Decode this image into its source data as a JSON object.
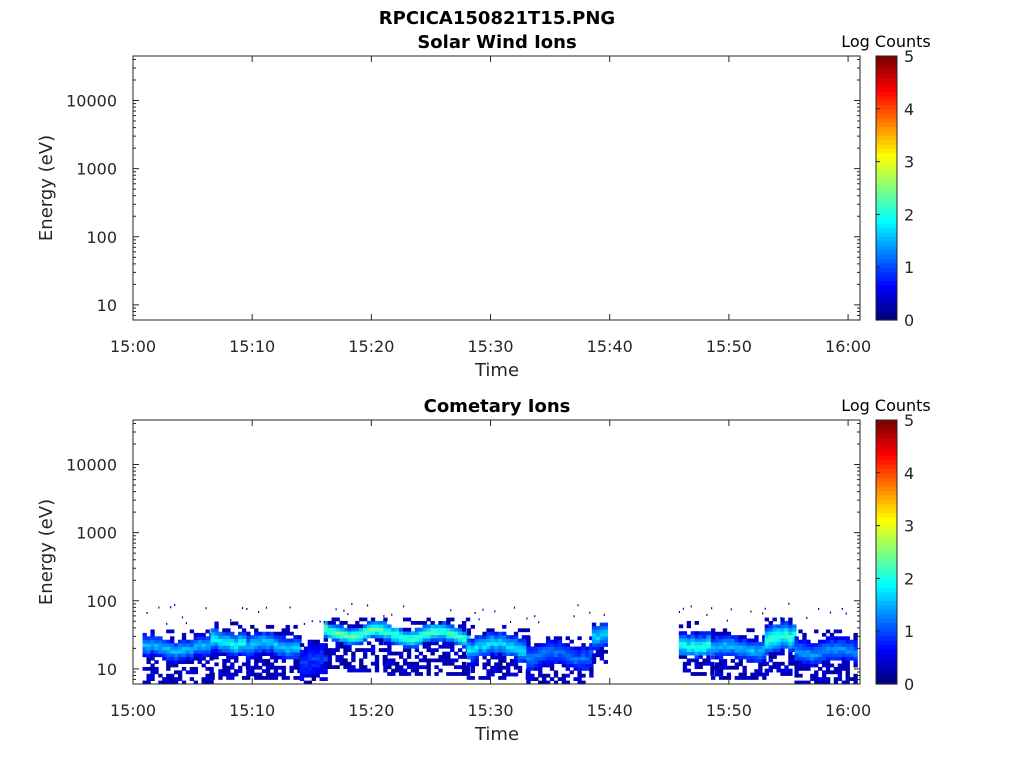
{
  "figure": {
    "title": "RPCICA150821T15.PNG"
  },
  "chart_data": [
    {
      "type": "heatmap",
      "title": "Solar Wind Ions",
      "xlabel": "Time",
      "ylabel": "Energy (eV)",
      "x_ticks": [
        "15:00",
        "15:10",
        "15:20",
        "15:30",
        "15:40",
        "15:50",
        "16:00"
      ],
      "x_range": [
        "15:00",
        "16:01"
      ],
      "y_scale": "log",
      "y_ticks": [
        "10",
        "100",
        "1000",
        "10000"
      ],
      "y_range": [
        6,
        45000
      ],
      "colorbar": {
        "label": "Log Counts",
        "ticks": [
          "0",
          "1",
          "2",
          "3",
          "4",
          "5"
        ],
        "range": [
          0,
          5
        ],
        "colormap": "jet"
      },
      "bands": []
    },
    {
      "type": "heatmap",
      "title": "Cometary Ions",
      "xlabel": "Time",
      "ylabel": "Energy (eV)",
      "x_ticks": [
        "15:00",
        "15:10",
        "15:20",
        "15:30",
        "15:40",
        "15:50",
        "16:00"
      ],
      "x_range": [
        "15:00",
        "16:01"
      ],
      "y_scale": "log",
      "y_ticks": [
        "10",
        "100",
        "1000",
        "10000"
      ],
      "y_range": [
        6,
        45000
      ],
      "colorbar": {
        "label": "Log Counts",
        "ticks": [
          "0",
          "1",
          "2",
          "3",
          "4",
          "5"
        ],
        "range": [
          0,
          5
        ],
        "colormap": "jet"
      },
      "data_gap": [
        "15:39:30",
        "15:45:45"
      ],
      "bands": [
        {
          "start_min": 0.8,
          "end_min": 6.5,
          "e_low": 13,
          "e_high": 27,
          "e_peak": 19,
          "peak_log": 1.6,
          "floor_log": 0.6,
          "min_e": 6
        },
        {
          "start_min": 6.5,
          "end_min": 9.5,
          "e_low": 16,
          "e_high": 35,
          "e_peak": 24,
          "peak_log": 2.0,
          "floor_log": 0.7,
          "min_e": 7
        },
        {
          "start_min": 9.5,
          "end_min": 14.0,
          "e_low": 14,
          "e_high": 30,
          "e_peak": 21,
          "peak_log": 1.7,
          "floor_log": 0.6,
          "min_e": 7
        },
        {
          "start_min": 14.0,
          "end_min": 16.0,
          "e_low": 7,
          "e_high": 20,
          "e_peak": 12,
          "peak_log": 0.9,
          "floor_log": 0.5,
          "min_e": 6
        },
        {
          "start_min": 16.0,
          "end_min": 21.0,
          "e_low": 24,
          "e_high": 42,
          "e_peak": 32,
          "peak_log": 2.5,
          "floor_log": 0.9,
          "min_e": 9
        },
        {
          "start_min": 21.0,
          "end_min": 28.0,
          "e_low": 22,
          "e_high": 40,
          "e_peak": 30,
          "peak_log": 2.3,
          "floor_log": 0.9,
          "min_e": 8
        },
        {
          "start_min": 28.0,
          "end_min": 33.0,
          "e_low": 14,
          "e_high": 30,
          "e_peak": 20,
          "peak_log": 1.8,
          "floor_log": 0.7,
          "min_e": 7
        },
        {
          "start_min": 33.0,
          "end_min": 38.5,
          "e_low": 10,
          "e_high": 22,
          "e_peak": 15,
          "peak_log": 1.2,
          "floor_log": 0.6,
          "min_e": 6
        },
        {
          "start_min": 38.5,
          "end_min": 39.5,
          "e_low": 18,
          "e_high": 40,
          "e_peak": 28,
          "peak_log": 1.7,
          "floor_log": 0.7,
          "min_e": 12
        },
        {
          "start_min": 45.8,
          "end_min": 48.5,
          "e_low": 16,
          "e_high": 35,
          "e_peak": 22,
          "peak_log": 2.1,
          "floor_log": 0.8,
          "min_e": 8
        },
        {
          "start_min": 48.5,
          "end_min": 53.0,
          "e_low": 13,
          "e_high": 28,
          "e_peak": 19,
          "peak_log": 1.6,
          "floor_log": 0.6,
          "min_e": 7
        },
        {
          "start_min": 53.0,
          "end_min": 55.5,
          "e_low": 16,
          "e_high": 40,
          "e_peak": 26,
          "peak_log": 2.2,
          "floor_log": 0.8,
          "min_e": 8
        },
        {
          "start_min": 55.5,
          "end_min": 60.5,
          "e_low": 12,
          "e_high": 26,
          "e_peak": 17,
          "peak_log": 1.4,
          "floor_log": 0.6,
          "min_e": 6
        }
      ]
    }
  ]
}
